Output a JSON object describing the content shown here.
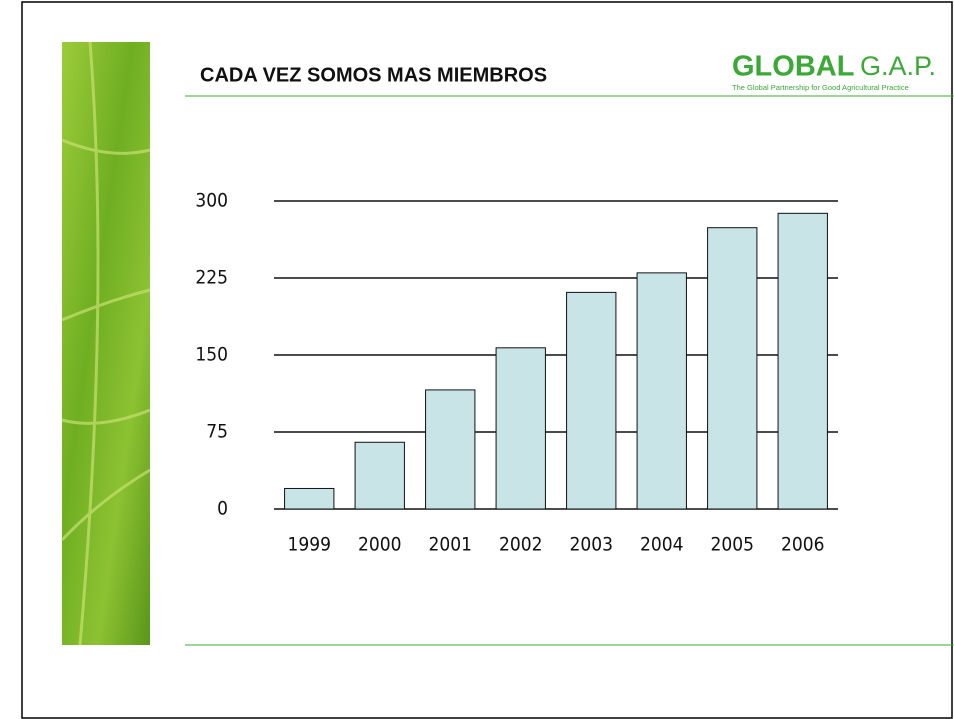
{
  "chart_data": {
    "type": "bar",
    "title": "CADA VEZ SOMOS MAS MIEMBROS",
    "categories": [
      "1999",
      "2000",
      "2001",
      "2002",
      "2003",
      "2004",
      "2005",
      "2006"
    ],
    "values": [
      20,
      65,
      116,
      157,
      211,
      230,
      274,
      288
    ],
    "color": "#c8e4e6",
    "ylim": [
      0,
      300
    ],
    "yticks": [
      0,
      75,
      150,
      225,
      300
    ],
    "grid": true
  },
  "logo": {
    "brand": "GLOBAL",
    "suffix": "G.A.P.",
    "tagline": "The Global Partnership for Good Agricultural Practice"
  }
}
